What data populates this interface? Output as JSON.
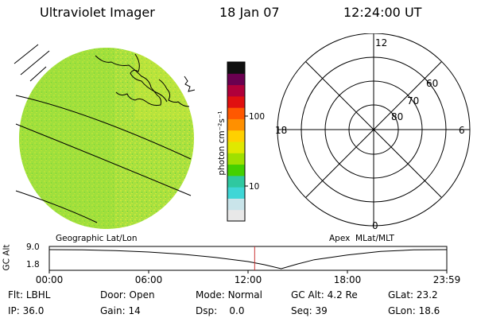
{
  "header": {
    "instrument": "Ultraviolet Imager",
    "date": "18 Jan 07",
    "time": "12:24:00 UT"
  },
  "colorbar": {
    "label": "photon cm⁻²s⁻¹",
    "ticks": [
      "100",
      "10"
    ],
    "colors": [
      "#e8e8e8",
      "#c9e4ea",
      "#3fd6d6",
      "#2fc8a0",
      "#44d000",
      "#9fe000",
      "#e0e800",
      "#ffd000",
      "#ff9000",
      "#ff5800",
      "#e01010",
      "#b0003a",
      "#6a0050",
      "#101010"
    ]
  },
  "left_panel": {
    "label": "Geographic Lat/Lon",
    "globe_color": "#a6e03a"
  },
  "right_panel": {
    "label": "Apex  MLat/MLT",
    "mlt_labels": {
      "top": "12",
      "bottom": "0",
      "left": "18",
      "right": "6"
    },
    "lat_labels": [
      "60",
      "70",
      "80"
    ]
  },
  "chart_data": {
    "type": "line",
    "title": "",
    "ylabel": "GC Alt",
    "yticks": [
      "9.0",
      "1.8"
    ],
    "ylim": [
      1.8,
      9.0
    ],
    "xticks": [
      "00:00",
      "06:00",
      "12:00",
      "18:00",
      "23:59"
    ],
    "x_hours": [
      0,
      2,
      4,
      6,
      8,
      10,
      12,
      13,
      14,
      15,
      16,
      18,
      20,
      22,
      24
    ],
    "values": [
      9.0,
      8.9,
      8.6,
      8.1,
      7.3,
      6.1,
      4.5,
      3.3,
      1.8,
      3.6,
      5.2,
      7.0,
      8.3,
      8.9,
      9.0
    ],
    "current_time_hours": 12.4,
    "marker_color": "#cc3333"
  },
  "status": {
    "flt_label": "Flt:",
    "flt_value": "LBHL",
    "ip_label": "IP:",
    "ip_value": "36.0",
    "door_label": "Door:",
    "door_value": "Open",
    "gain_label": "Gain:",
    "gain_value": "14",
    "mode_label": "Mode:",
    "mode_value": "Normal",
    "dsp_label": "Dsp:",
    "dsp_value": "0.0",
    "gcalt_label": "GC Alt:",
    "gcalt_value": "4.2 Re",
    "seq_label": "Seq:",
    "seq_value": "39",
    "glat_label": "GLat:",
    "glat_value": "23.2",
    "glon_label": "GLon:",
    "glon_value": "18.6"
  }
}
